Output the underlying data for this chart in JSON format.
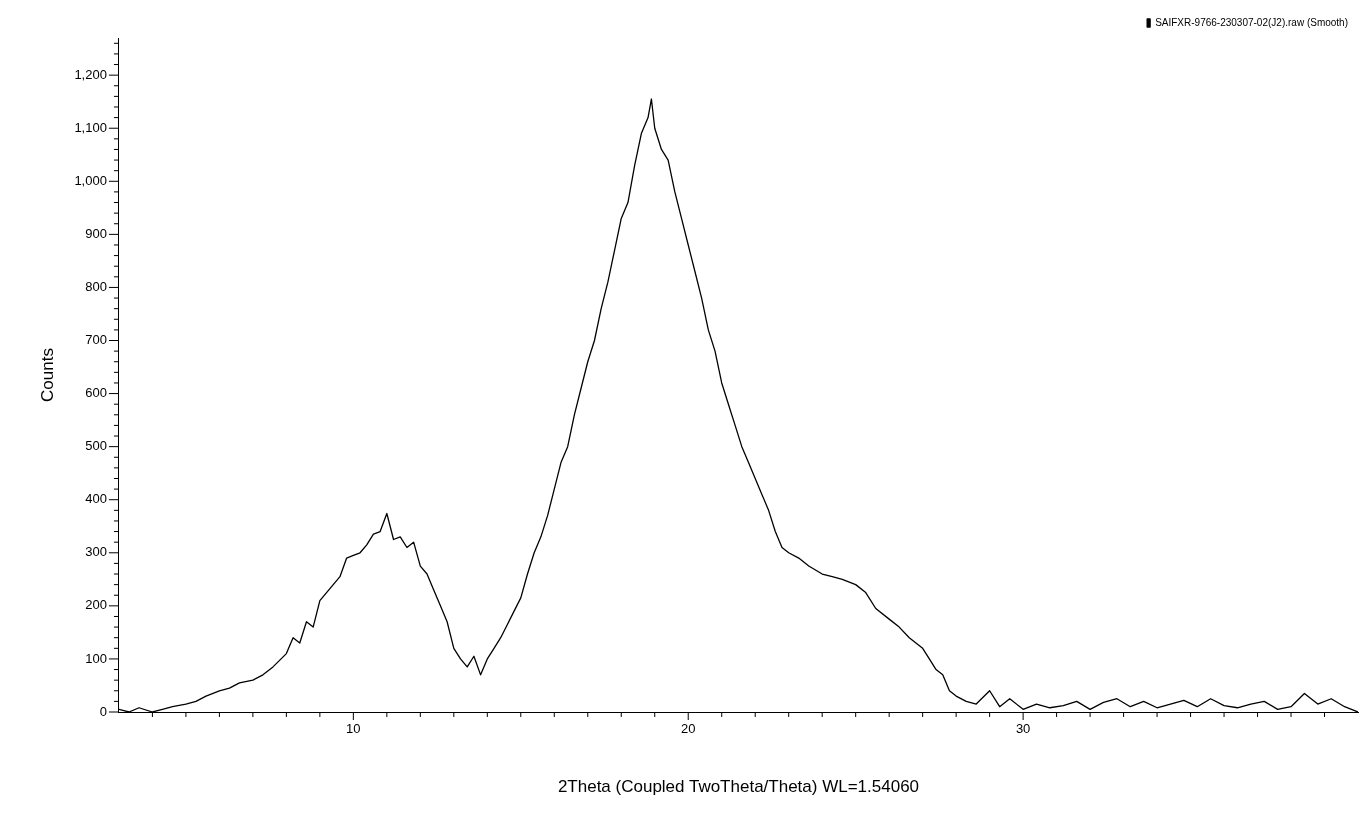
{
  "chart_data": {
    "type": "line",
    "xlabel": "2Theta (Coupled TwoTheta/Theta) WL=1.54060",
    "ylabel": "Counts",
    "legend": "top right",
    "marker": "none",
    "xlim": [
      3,
      40
    ],
    "ylim": [
      0,
      1270
    ],
    "xticks": [
      {
        "value": 4,
        "label": null
      },
      {
        "value": 5,
        "label": null
      },
      {
        "value": 6,
        "label": null
      },
      {
        "value": 7,
        "label": null
      },
      {
        "value": 8,
        "label": null
      },
      {
        "value": 9,
        "label": null
      },
      10,
      {
        "value": 11,
        "label": null
      },
      {
        "value": 12,
        "label": null
      },
      {
        "value": 13,
        "label": null
      },
      {
        "value": 14,
        "label": null
      },
      {
        "value": 15,
        "label": null
      },
      {
        "value": 16,
        "label": null
      },
      {
        "value": 17,
        "label": null
      },
      {
        "value": 18,
        "label": null
      },
      {
        "value": 19,
        "label": null
      },
      20,
      {
        "value": 21,
        "label": null
      },
      {
        "value": 22,
        "label": null
      },
      {
        "value": 23,
        "label": null
      },
      {
        "value": 24,
        "label": null
      },
      {
        "value": 25,
        "label": null
      },
      {
        "value": 26,
        "label": null
      },
      {
        "value": 27,
        "label": null
      },
      {
        "value": 28,
        "label": null
      },
      {
        "value": 29,
        "label": null
      },
      30,
      {
        "value": 31,
        "label": null
      },
      {
        "value": 32,
        "label": null
      },
      {
        "value": 33,
        "label": null
      },
      {
        "value": 34,
        "label": null
      },
      {
        "value": 35,
        "label": null
      },
      {
        "value": 36,
        "label": null
      },
      {
        "value": 37,
        "label": null
      },
      {
        "value": 38,
        "label": null
      },
      {
        "value": 39,
        "label": null
      }
    ],
    "yticks": [
      0,
      {
        "value": 20,
        "label": null
      },
      {
        "value": 40,
        "label": null
      },
      {
        "value": 60,
        "label": null
      },
      {
        "value": 80,
        "label": null
      },
      100,
      {
        "value": 120,
        "label": null
      },
      {
        "value": 140,
        "label": null
      },
      {
        "value": 160,
        "label": null
      },
      {
        "value": 180,
        "label": null
      },
      200,
      {
        "value": 220,
        "label": null
      },
      {
        "value": 240,
        "label": null
      },
      {
        "value": 260,
        "label": null
      },
      {
        "value": 280,
        "label": null
      },
      300,
      {
        "value": 320,
        "label": null
      },
      {
        "value": 340,
        "label": null
      },
      {
        "value": 360,
        "label": null
      },
      {
        "value": 380,
        "label": null
      },
      400,
      {
        "value": 420,
        "label": null
      },
      {
        "value": 440,
        "label": null
      },
      {
        "value": 460,
        "label": null
      },
      {
        "value": 480,
        "label": null
      },
      500,
      {
        "value": 520,
        "label": null
      },
      {
        "value": 540,
        "label": null
      },
      {
        "value": 560,
        "label": null
      },
      {
        "value": 580,
        "label": null
      },
      600,
      {
        "value": 620,
        "label": null
      },
      {
        "value": 640,
        "label": null
      },
      {
        "value": 660,
        "label": null
      },
      {
        "value": 680,
        "label": null
      },
      700,
      {
        "value": 720,
        "label": null
      },
      {
        "value": 740,
        "label": null
      },
      {
        "value": 760,
        "label": null
      },
      {
        "value": 780,
        "label": null
      },
      800,
      {
        "value": 820,
        "label": null
      },
      {
        "value": 840,
        "label": null
      },
      {
        "value": 860,
        "label": null
      },
      {
        "value": 880,
        "label": null
      },
      900,
      {
        "value": 920,
        "label": null
      },
      {
        "value": 940,
        "label": null
      },
      {
        "value": 960,
        "label": null
      },
      {
        "value": 980,
        "label": null
      },
      {
        "value": 1000,
        "label": "1,000"
      },
      {
        "value": 1020,
        "label": null
      },
      {
        "value": 1040,
        "label": null
      },
      {
        "value": 1060,
        "label": null
      },
      {
        "value": 1080,
        "label": null
      },
      {
        "value": 1100,
        "label": "1,100"
      },
      {
        "value": 1120,
        "label": null
      },
      {
        "value": 1140,
        "label": null
      },
      {
        "value": 1160,
        "label": null
      },
      {
        "value": 1180,
        "label": null
      },
      {
        "value": 1200,
        "label": "1,200"
      },
      {
        "value": 1220,
        "label": null
      },
      {
        "value": 1240,
        "label": null
      },
      {
        "value": 1260,
        "label": null
      }
    ],
    "series": [
      {
        "name": "SAIFXR-9766-230307-02(J2).raw (Smooth)",
        "color": "#000000",
        "x": [
          3,
          3.3,
          3.6,
          4,
          4.3,
          4.6,
          5,
          5.3,
          5.6,
          6,
          6.3,
          6.6,
          7,
          7.3,
          7.6,
          8,
          8.2,
          8.4,
          8.6,
          8.8,
          9,
          9.2,
          9.4,
          9.6,
          9.8,
          10,
          10.2,
          10.4,
          10.6,
          10.8,
          11,
          11.2,
          11.4,
          11.6,
          11.8,
          12,
          12.2,
          12.4,
          12.6,
          12.8,
          13,
          13.2,
          13.4,
          13.6,
          13.8,
          14,
          14.2,
          14.4,
          14.6,
          14.8,
          15,
          15.2,
          15.4,
          15.6,
          15.8,
          16,
          16.2,
          16.4,
          16.6,
          16.8,
          17,
          17.2,
          17.4,
          17.6,
          17.8,
          18,
          18.2,
          18.4,
          18.6,
          18.8,
          18.9,
          19,
          19.2,
          19.4,
          19.6,
          19.8,
          20,
          20.2,
          20.4,
          20.6,
          20.8,
          21,
          21.2,
          21.4,
          21.6,
          21.8,
          22,
          22.2,
          22.4,
          22.6,
          22.8,
          23,
          23.3,
          23.6,
          24,
          24.3,
          24.6,
          25,
          25.3,
          25.6,
          26,
          26.3,
          26.6,
          27,
          27.2,
          27.4,
          27.6,
          27.8,
          28,
          28.3,
          28.6,
          29,
          29.3,
          29.6,
          30,
          30.4,
          30.8,
          31.2,
          31.6,
          32,
          32.4,
          32.8,
          33.2,
          33.6,
          34,
          34.4,
          34.8,
          35.2,
          35.6,
          36,
          36.4,
          36.8,
          37.2,
          37.6,
          38,
          38.4,
          38.8,
          39.2,
          39.6,
          40
        ],
        "values": [
          5,
          0,
          8,
          0,
          5,
          10,
          15,
          20,
          30,
          40,
          45,
          55,
          60,
          70,
          85,
          110,
          140,
          130,
          170,
          160,
          210,
          225,
          240,
          255,
          290,
          295,
          300,
          315,
          335,
          340,
          374,
          325,
          330,
          310,
          320,
          275,
          260,
          230,
          200,
          170,
          120,
          100,
          85,
          105,
          70,
          100,
          120,
          140,
          165,
          190,
          215,
          260,
          300,
          330,
          370,
          420,
          470,
          500,
          560,
          610,
          660,
          700,
          760,
          810,
          870,
          930,
          960,
          1030,
          1090,
          1120,
          1155,
          1100,
          1060,
          1040,
          980,
          930,
          880,
          830,
          780,
          720,
          680,
          620,
          580,
          540,
          500,
          470,
          440,
          410,
          380,
          340,
          310,
          300,
          290,
          275,
          260,
          255,
          250,
          240,
          225,
          195,
          175,
          160,
          140,
          120,
          100,
          80,
          70,
          40,
          30,
          20,
          15,
          40,
          10,
          25,
          5,
          15,
          8,
          12,
          20,
          5,
          18,
          25,
          10,
          20,
          8,
          15,
          22,
          10,
          25,
          12,
          8,
          15,
          20,
          5,
          10,
          35,
          15,
          25,
          10,
          0
        ]
      }
    ]
  }
}
